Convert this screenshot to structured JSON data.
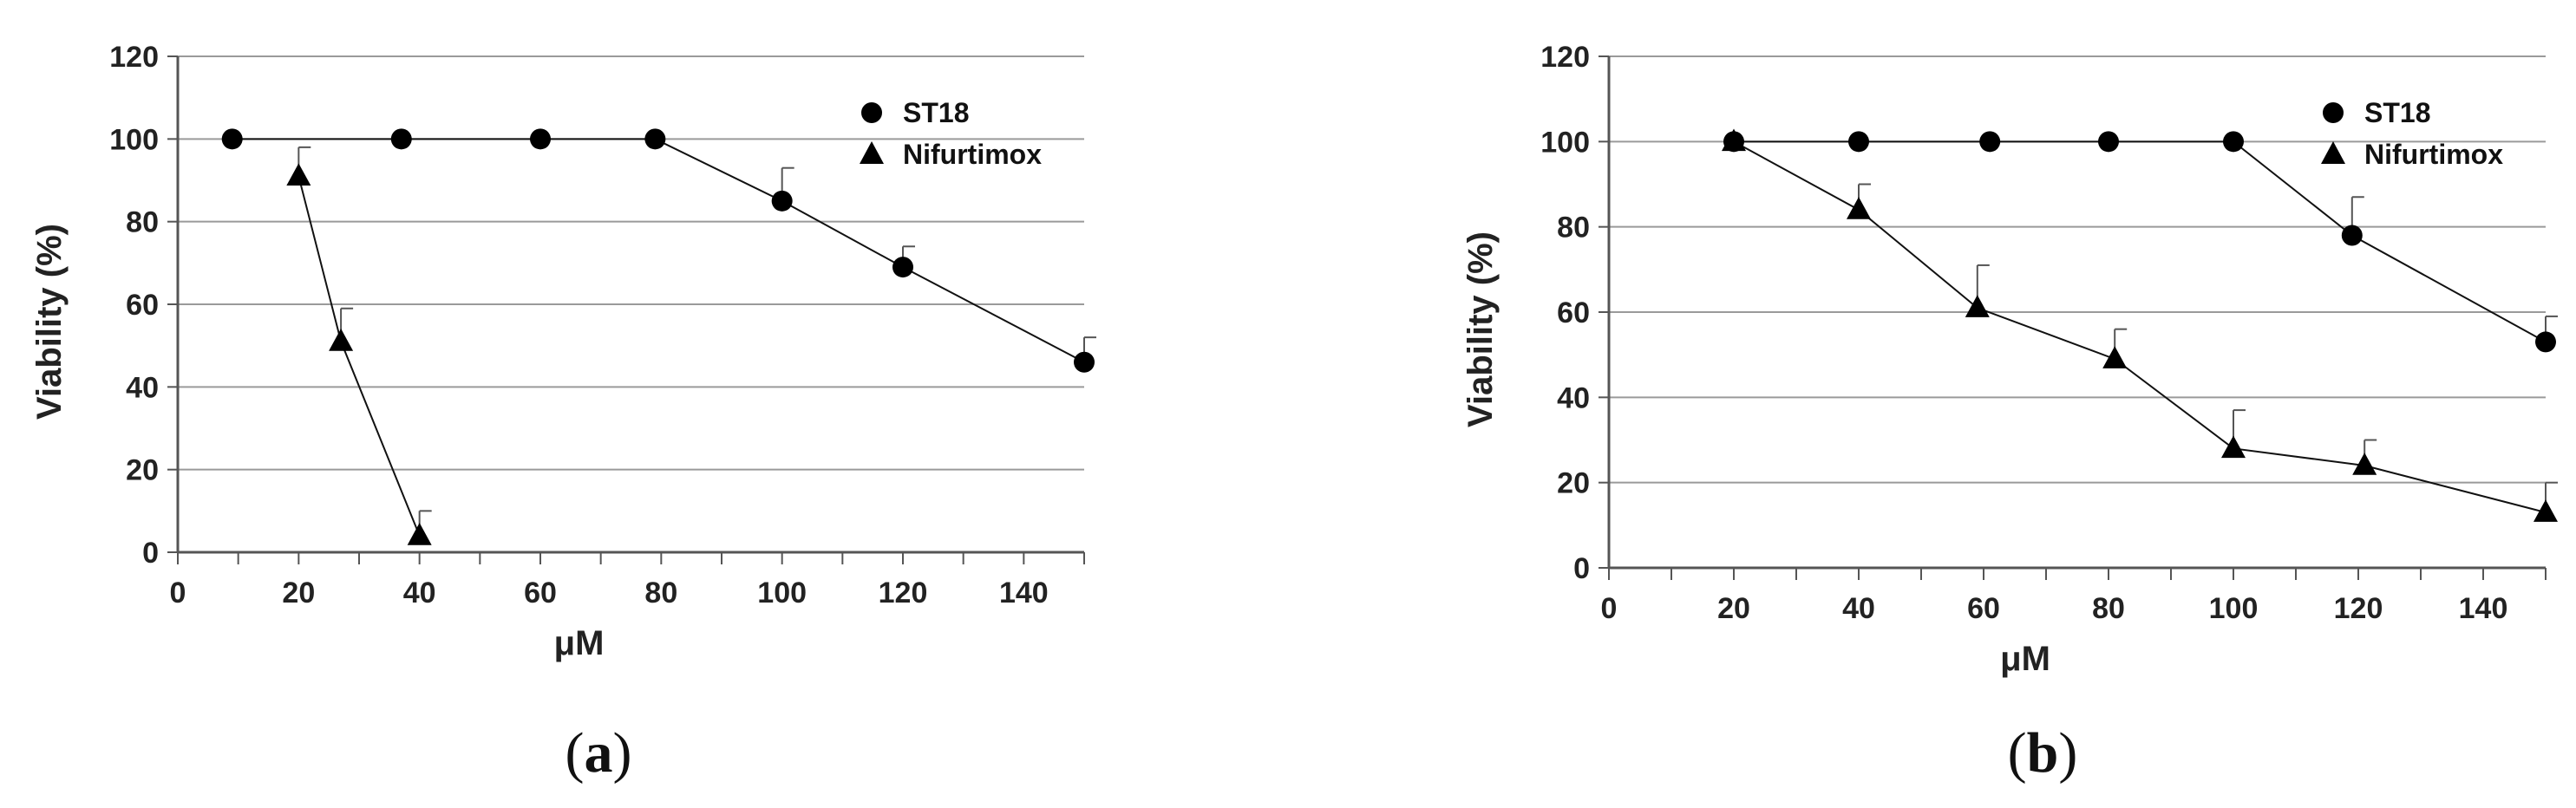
{
  "chart_data": [
    {
      "type": "line",
      "panel_label": {
        "open": "(",
        "letter": "a",
        "close": ")"
      },
      "xlabel": "μM",
      "ylabel": "Viability (%)",
      "xlim": [
        0,
        150
      ],
      "ylim": [
        0,
        120
      ],
      "x_ticks": [
        0,
        20,
        40,
        60,
        80,
        100,
        120,
        140
      ],
      "y_ticks": [
        0,
        20,
        40,
        60,
        80,
        100,
        120
      ],
      "grid": "horizontal",
      "legend_position": "top-right",
      "series": [
        {
          "name": "ST18",
          "marker": "circle",
          "x": [
            9,
            37,
            60,
            79,
            100,
            120,
            150
          ],
          "y": [
            100,
            100,
            100,
            100,
            85,
            69,
            46
          ],
          "err": [
            0,
            0,
            0,
            0,
            8,
            5,
            6
          ]
        },
        {
          "name": "Nifurtimox",
          "marker": "triangle",
          "x": [
            20,
            27,
            40
          ],
          "y": [
            91,
            51,
            4
          ],
          "err": [
            7,
            8,
            6
          ]
        }
      ]
    },
    {
      "type": "line",
      "panel_label": {
        "open": "(",
        "letter": "b",
        "close": ")"
      },
      "xlabel": "μM",
      "ylabel": "Viability (%)",
      "xlim": [
        0,
        150
      ],
      "ylim": [
        0,
        120
      ],
      "x_ticks": [
        0,
        20,
        40,
        60,
        80,
        100,
        120,
        140
      ],
      "y_ticks": [
        0,
        20,
        40,
        60,
        80,
        100,
        120
      ],
      "grid": "horizontal",
      "legend_position": "top-right",
      "series": [
        {
          "name": "ST18",
          "marker": "circle",
          "x": [
            20,
            40,
            61,
            80,
            100,
            119,
            150
          ],
          "y": [
            100,
            100,
            100,
            100,
            100,
            78,
            53
          ],
          "err": [
            0,
            0,
            0,
            0,
            0,
            9,
            6
          ]
        },
        {
          "name": "Nifurtimox",
          "marker": "triangle",
          "x": [
            20,
            40,
            59,
            81,
            100,
            121,
            150
          ],
          "y": [
            100,
            84,
            61,
            49,
            28,
            24,
            13
          ],
          "err": [
            0,
            6,
            10,
            7,
            9,
            6,
            7
          ]
        }
      ]
    }
  ]
}
